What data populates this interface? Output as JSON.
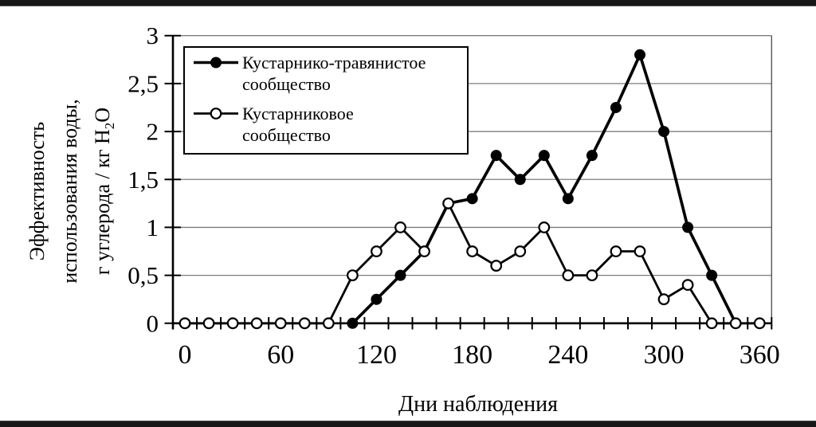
{
  "page": {
    "background": "#ffffff",
    "scan_band_color": "#171717",
    "gridline_color": "#7d7d7d",
    "axis_color": "#000000"
  },
  "chart_data": {
    "type": "line",
    "xlabel": "Дни наблюдения",
    "ylabel_lines": [
      "Эффективность",
      "использования воды,",
      {
        "prefix": "г углерода / кг H",
        "sub": "2",
        "suffix": "O"
      }
    ],
    "xlim": [
      0,
      360
    ],
    "ylim": [
      0,
      3
    ],
    "grid": "horizontal",
    "legend_position": "inside-top-left",
    "x": [
      0,
      15,
      30,
      45,
      60,
      75,
      90,
      105,
      120,
      135,
      150,
      165,
      180,
      195,
      210,
      225,
      240,
      255,
      270,
      285,
      300,
      315,
      330,
      345,
      360
    ],
    "x_ticks": {
      "values": [
        0,
        60,
        120,
        180,
        240,
        300,
        360
      ],
      "labels": [
        "0",
        "60",
        "120",
        "180",
        "240",
        "300",
        "360"
      ],
      "minor_interval": 15
    },
    "y_ticks": {
      "values": [
        0,
        0.5,
        1,
        1.5,
        2,
        2.5,
        3
      ],
      "labels": [
        "0",
        "0,5",
        "1",
        "1,5",
        "2",
        "2,5",
        "3"
      ]
    },
    "series": [
      {
        "key": "shrub-grass",
        "name": "Кустарнико-травянистое сообщество",
        "legend_lines": [
          "Кустарнико-травянистое",
          "сообщество"
        ],
        "marker": "filled-circle",
        "color": "#000000",
        "values": [
          null,
          null,
          null,
          null,
          null,
          null,
          null,
          0,
          0.25,
          0.5,
          0.75,
          1.25,
          1.3,
          1.75,
          1.5,
          1.75,
          1.3,
          1.75,
          2.25,
          2.8,
          2,
          1,
          0.5,
          0,
          null
        ]
      },
      {
        "key": "shrub",
        "name": "Кустарниковое сообщество",
        "legend_lines": [
          "Кустарниковое",
          "сообщество"
        ],
        "marker": "open-circle",
        "color": "#000000",
        "values": [
          0,
          0,
          0,
          0,
          0,
          0,
          0,
          0.5,
          0.75,
          1,
          0.75,
          1.25,
          0.75,
          0.6,
          0.75,
          1,
          0.5,
          0.5,
          0.75,
          0.75,
          0.25,
          0.4,
          0,
          0,
          0
        ]
      }
    ]
  }
}
